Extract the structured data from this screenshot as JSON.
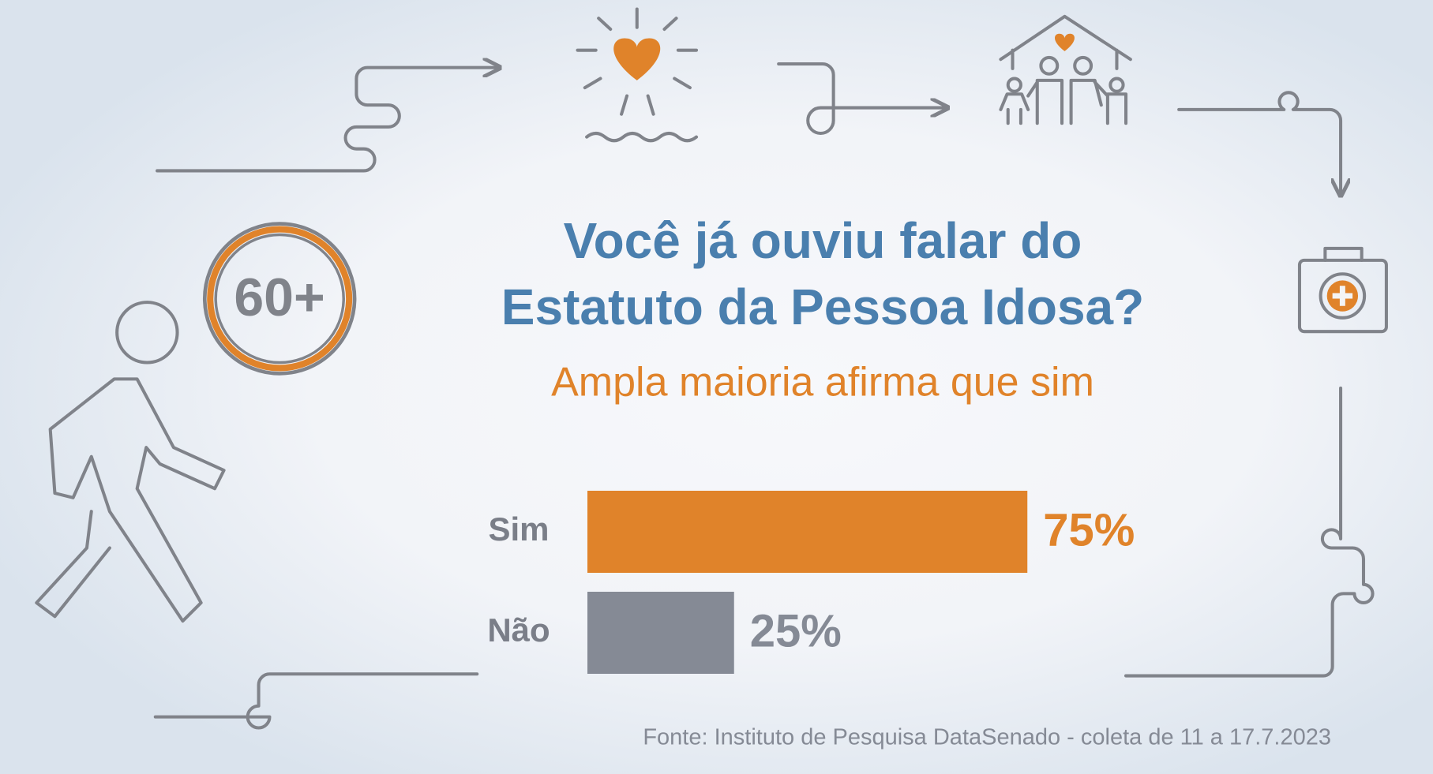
{
  "chart_data": {
    "type": "bar",
    "orientation": "horizontal",
    "title": [
      "Você já ouviu falar do",
      "Estatuto da Pessoa Idosa?"
    ],
    "subtitle": "Ampla maioria afirma que sim",
    "badge": "60+",
    "categories": [
      "Sim",
      "Não"
    ],
    "values": [
      75,
      25
    ],
    "value_labels": [
      "75%",
      "25%"
    ],
    "colors": [
      "#e0832a",
      "#858a95"
    ],
    "source": "Fonte: Instituto de Pesquisa DataSenado - coleta de 11 a 17.7.2023"
  }
}
